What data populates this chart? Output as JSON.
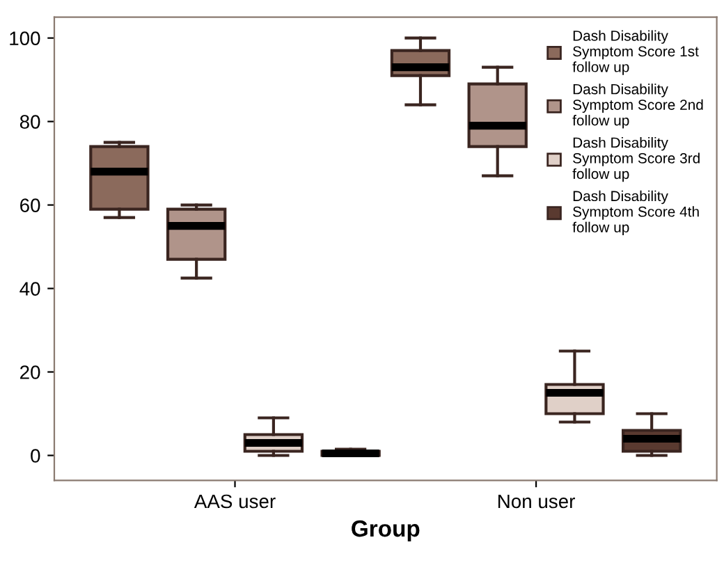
{
  "chart_data": {
    "type": "box",
    "xlabel": "Group",
    "categories": [
      "AAS user",
      "Non user"
    ],
    "ylim": [
      -6,
      105
    ],
    "yticks": [
      0,
      20,
      40,
      60,
      80,
      100
    ],
    "grid": false,
    "legend": "right",
    "series": [
      {
        "name": "Dash Disability Symptom Score 1st follow up",
        "color": "#8b6a5c",
        "boxes": [
          {
            "low": 57,
            "q1": 59,
            "median": 68,
            "q3": 74,
            "high": 75
          },
          {
            "low": 84,
            "q1": 91,
            "median": 93,
            "q3": 97,
            "high": 100
          }
        ]
      },
      {
        "name": "Dash Disability Symptom Score 2nd follow up",
        "color": "#b0948a",
        "boxes": [
          {
            "low": 42.5,
            "q1": 47,
            "median": 55,
            "q3": 59,
            "high": 60
          },
          {
            "low": 67,
            "q1": 74,
            "median": 79,
            "q3": 89,
            "high": 93
          }
        ]
      },
      {
        "name": "Dash Disability Symptom Score 3rd follow up",
        "color": "#e0d0c8",
        "boxes": [
          {
            "low": 0,
            "q1": 1,
            "median": 3,
            "q3": 5,
            "high": 9
          },
          {
            "low": 8,
            "q1": 10,
            "median": 15,
            "q3": 17,
            "high": 25
          }
        ]
      },
      {
        "name": "Dash Disability Symptom Score 4th follow up",
        "color": "#5a3a30",
        "boxes": [
          {
            "low": 0,
            "q1": 0,
            "median": 0.5,
            "q3": 1,
            "high": 1.5
          },
          {
            "low": 0,
            "q1": 1,
            "median": 4,
            "q3": 6,
            "high": 10
          }
        ]
      }
    ]
  }
}
